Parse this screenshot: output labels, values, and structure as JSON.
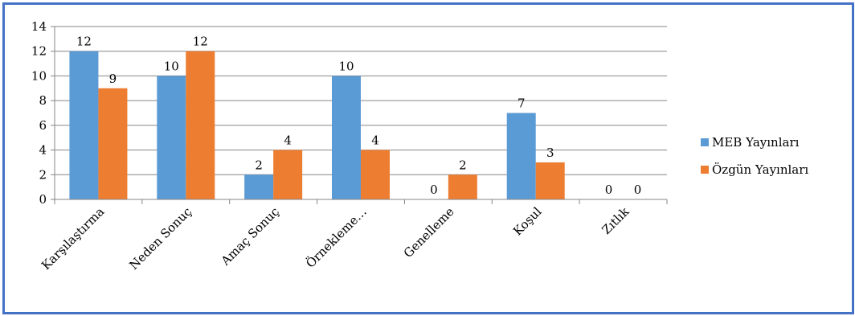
{
  "chart_data": {
    "type": "bar",
    "title": "",
    "xlabel": "",
    "ylabel": "",
    "categories": [
      "Karşılaştırma",
      "Neden Sonuç",
      "Amaç Sonuç",
      "Örnekleme…",
      "Genelleme",
      "Koşul",
      "Zıtlık"
    ],
    "series": [
      {
        "name": "MEB Yayınları",
        "values": [
          12,
          10,
          2,
          10,
          0,
          7,
          0
        ]
      },
      {
        "name": "Özgün Yayınları",
        "values": [
          9,
          12,
          4,
          4,
          2,
          3,
          0
        ]
      }
    ],
    "ylim": [
      0,
      14
    ],
    "yticks": [
      0,
      2,
      4,
      6,
      8,
      10,
      12,
      14
    ],
    "grid": true,
    "legend": "right",
    "colors": [
      "#5B9BD5",
      "#ED7D31"
    ]
  }
}
